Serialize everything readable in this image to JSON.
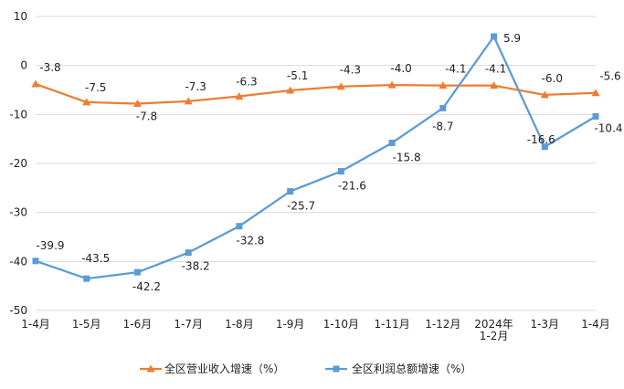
{
  "chart_data": {
    "type": "line",
    "title": "",
    "xlabel": "",
    "ylabel": "",
    "ylim": [
      -50,
      10
    ],
    "yticks": [
      10,
      0,
      -10,
      -20,
      -30,
      -40,
      -50
    ],
    "grid": true,
    "legend_position": "bottom",
    "categories": [
      [
        "1-4月"
      ],
      [
        "1-5月"
      ],
      [
        "1-6月"
      ],
      [
        "1-7月"
      ],
      [
        "1-8月"
      ],
      [
        "1-9月"
      ],
      [
        "1-10月"
      ],
      [
        "1-11月"
      ],
      [
        "1-12月"
      ],
      [
        "2024年",
        "1-2月"
      ],
      [
        "1-3月"
      ],
      [
        "1-4月"
      ]
    ],
    "series": [
      {
        "name": "全区营业收入增速（%）",
        "color": "#ED7D31",
        "marker": "triangle",
        "values": [
          -3.8,
          -7.5,
          -7.8,
          -7.3,
          -6.3,
          -5.1,
          -4.3,
          -4.0,
          -4.1,
          -4.1,
          -6.0,
          -5.6
        ],
        "labels": [
          "-3.8",
          "-7.5",
          "-7.8",
          "-7.3",
          "-6.3",
          "-5.1",
          "-4.3",
          "-4.0",
          "-4.1",
          "-4.1",
          "-6.0",
          "-5.6"
        ]
      },
      {
        "name": "全区利润总额增速（%）",
        "color": "#5B9BD5",
        "marker": "square",
        "values": [
          -39.9,
          -43.5,
          -42.2,
          -38.2,
          -32.8,
          -25.7,
          -21.6,
          -15.8,
          -8.7,
          5.9,
          -16.6,
          -10.4
        ],
        "labels": [
          "-39.9",
          "-43.5",
          "-42.2",
          "-38.2",
          "-32.8",
          "-25.7",
          "-21.6",
          "-15.8",
          "-8.7",
          "5.9",
          "-16.6",
          "-10.4"
        ]
      }
    ]
  }
}
